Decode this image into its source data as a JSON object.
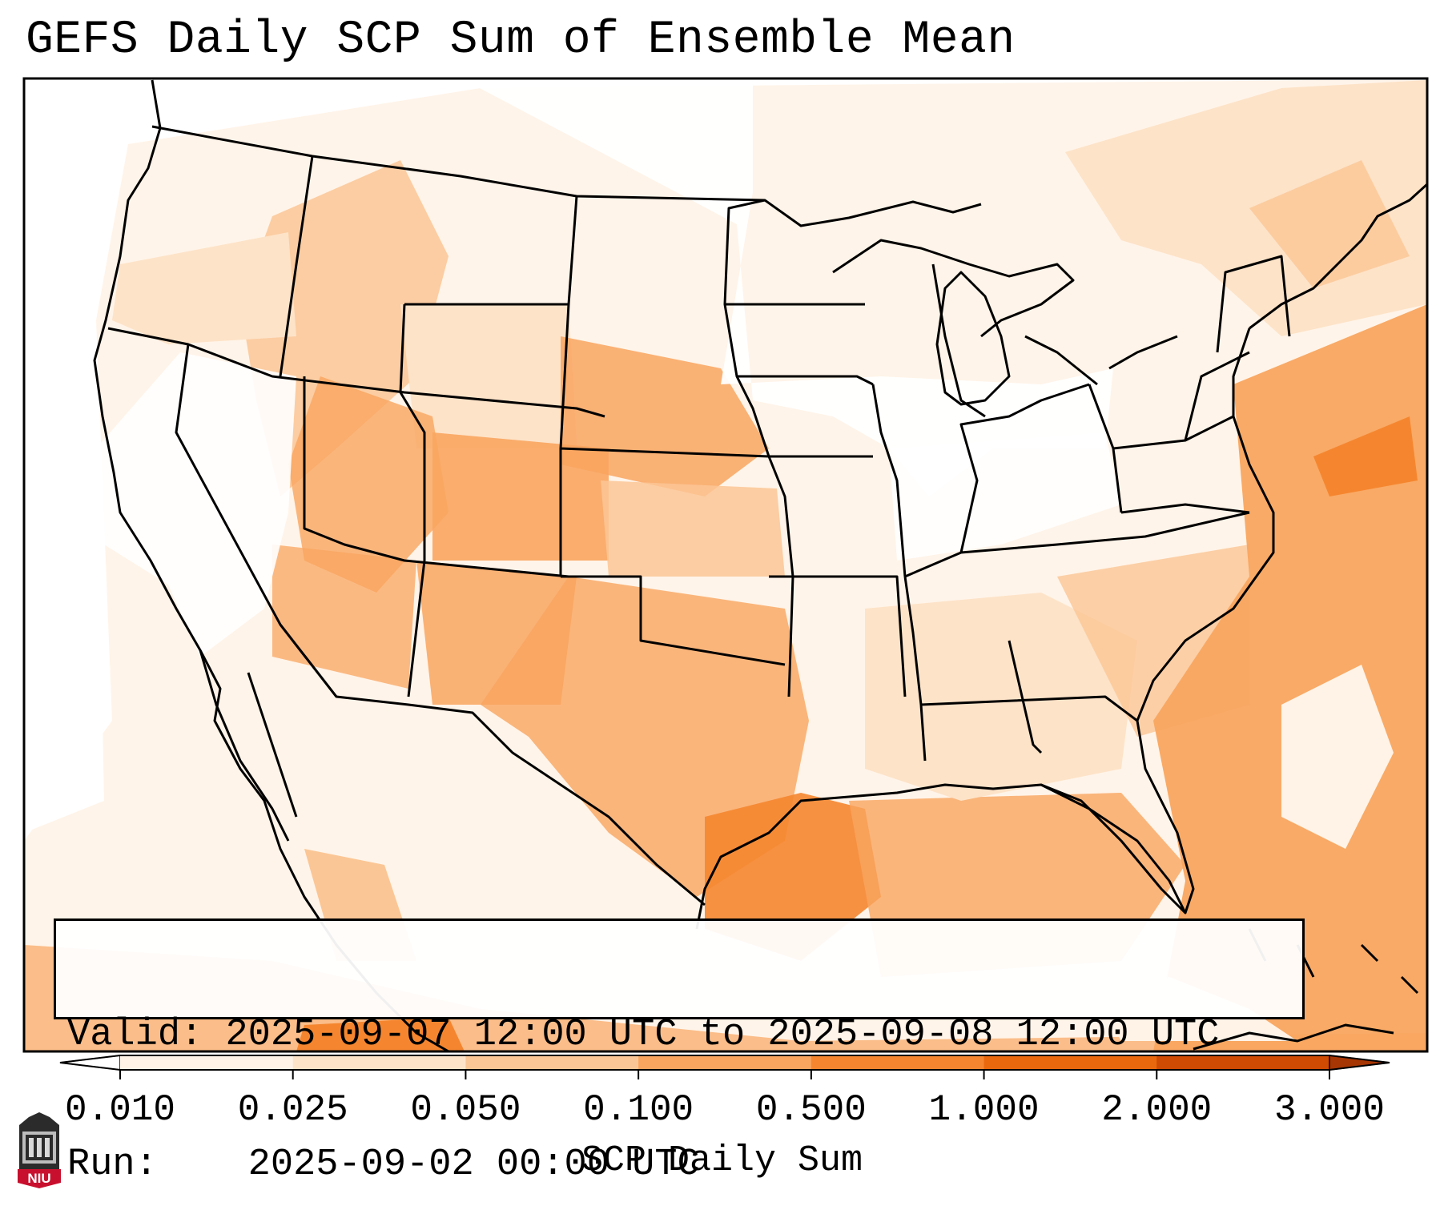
{
  "title": "GEFS Daily SCP Sum of Ensemble Mean",
  "info": {
    "valid_label": "Valid:",
    "valid_value": "2025-09-07 12:00 UTC to 2025-09-08 12:00 UTC",
    "run_label": "Run:",
    "run_value": "2025-09-02 00:00 UTC"
  },
  "colorbar": {
    "label": "SCP Daily Sum",
    "ticks": [
      "0.010",
      "0.025",
      "0.050",
      "0.100",
      "0.500",
      "1.000",
      "2.000",
      "3.000"
    ],
    "colors": [
      "#fff3e7",
      "#fde3c8",
      "#fbc695",
      "#f9a55f",
      "#f5862f",
      "#e9680e",
      "#cf4a02"
    ],
    "extend": "both",
    "under_color": "#ffffff",
    "over_color": "#a63603"
  },
  "logo": {
    "text": "NIU",
    "color": "#c8102e"
  }
}
